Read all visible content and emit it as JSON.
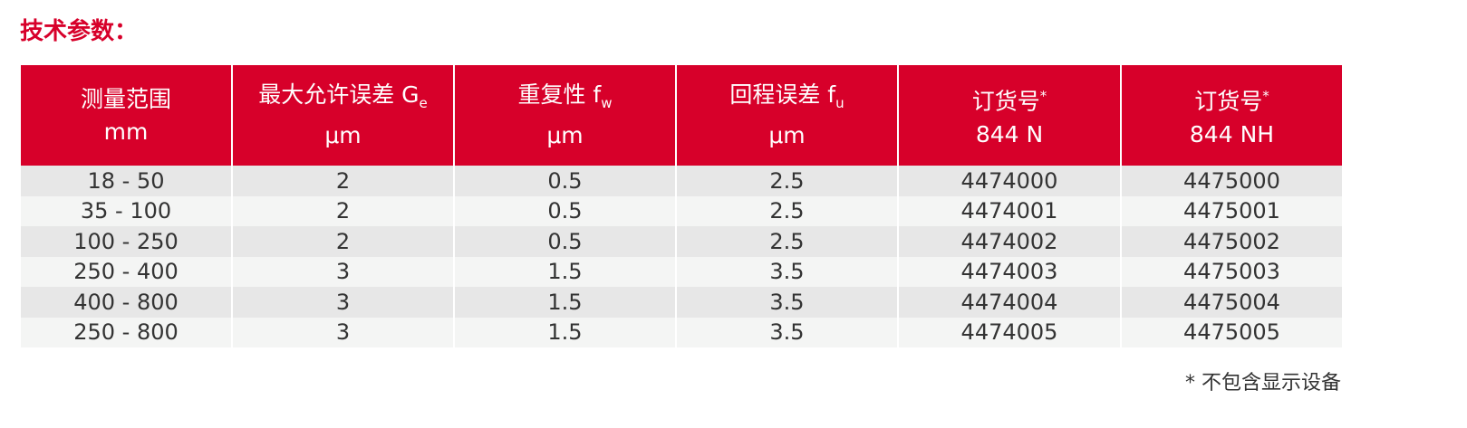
{
  "title": "技术参数：",
  "table": {
    "headers": [
      {
        "line1": "测量范围",
        "line2": "mm"
      },
      {
        "line1": "最大允许误差 G",
        "sub": "e",
        "line2": "μm"
      },
      {
        "line1": "重复性 f",
        "sub": "w",
        "line2": "μm"
      },
      {
        "line1": "回程误差 f",
        "sub": "u",
        "line2": "μm"
      },
      {
        "line1": "订货号",
        "sup": "*",
        "line2": "844 N"
      },
      {
        "line1": "订货号",
        "sup": "*",
        "line2": "844 NH"
      }
    ],
    "rows": [
      [
        "18 - 50",
        "2",
        "0.5",
        "2.5",
        "4474000",
        "4475000"
      ],
      [
        "35 - 100",
        "2",
        "0.5",
        "2.5",
        "4474001",
        "4475001"
      ],
      [
        "100 - 250",
        "2",
        "0.5",
        "2.5",
        "4474002",
        "4475002"
      ],
      [
        "250 - 400",
        "3",
        "1.5",
        "3.5",
        "4474003",
        "4475003"
      ],
      [
        "400 - 800",
        "3",
        "1.5",
        "3.5",
        "4474004",
        "4475004"
      ],
      [
        "250 - 800",
        "3",
        "1.5",
        "3.5",
        "4474005",
        "4475005"
      ]
    ]
  },
  "footnote": "* 不包含显示设备"
}
